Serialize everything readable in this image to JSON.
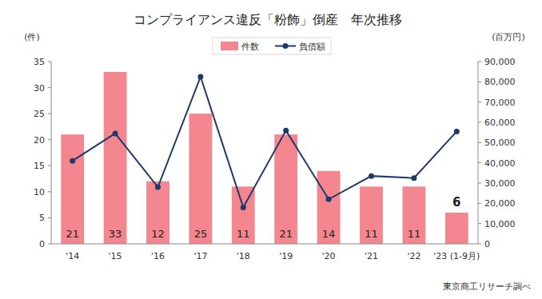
{
  "chart_data": {
    "type": "bar",
    "title": "コンプライアンス違反「粉飾」倒産　年次推移",
    "y_label": "(件)",
    "y2_label": "(百万円)",
    "source": "東京商工リサーチ調べ",
    "categories": [
      "'14",
      "'15",
      "'16",
      "'17",
      "'18",
      "'19",
      "'20",
      "'21",
      "'22",
      "'23 (1-9月)"
    ],
    "series": [
      {
        "name": "件数",
        "type": "bar",
        "color": "#f4868f",
        "values": [
          21,
          33,
          12,
          25,
          11,
          21,
          14,
          11,
          11,
          6
        ]
      },
      {
        "name": "負債額",
        "type": "line",
        "axis": "y2",
        "color": "#1f3a68",
        "marker": "circle",
        "line_style": "solid",
        "values": [
          41000,
          54500,
          28000,
          82500,
          18000,
          56000,
          22000,
          33500,
          32500,
          55500
        ]
      }
    ],
    "ylim": [
      0,
      35
    ],
    "yticks": [
      0,
      5,
      10,
      15,
      20,
      25,
      30,
      35
    ],
    "y2lim": [
      0,
      90000
    ],
    "y2ticks": [
      0,
      {
        "value": 10000,
        "label": "10,000"
      },
      {
        "value": 20000,
        "label": "20,000"
      },
      {
        "value": 30000,
        "label": "30,000"
      },
      {
        "value": 40000,
        "label": "40,000"
      },
      {
        "value": 50000,
        "label": "50,000"
      },
      {
        "value": 60000,
        "label": "60,000"
      },
      {
        "value": 70000,
        "label": "70,000"
      },
      {
        "value": 80000,
        "label": "80,000"
      },
      {
        "value": 90000,
        "label": "90,000"
      }
    ],
    "grid": false,
    "legend": "top",
    "data_labels": true
  }
}
